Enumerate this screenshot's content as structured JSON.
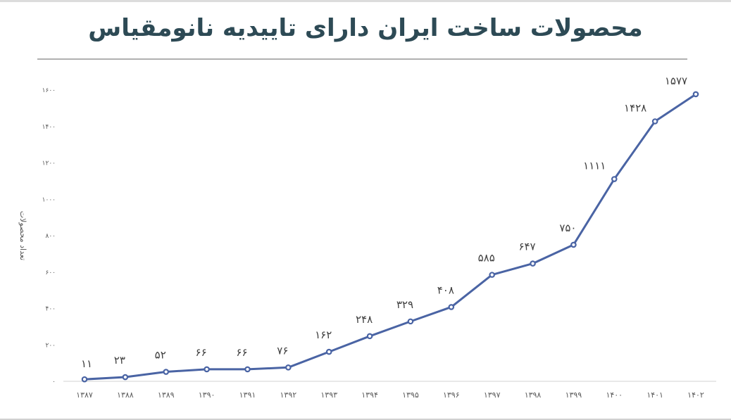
{
  "chart_data": {
    "type": "line",
    "title": "محصولات ساخت ایران دارای تاییدیه نانومقیاس",
    "xlabel": "",
    "ylabel": "تعداد محصولات",
    "categories": [
      "۱۳۸۷",
      "۱۳۸۸",
      "۱۳۸۹",
      "۱۳۹۰",
      "۱۳۹۱",
      "۱۳۹۲",
      "۱۳۹۳",
      "۱۳۹۴",
      "۱۳۹۵",
      "۱۳۹۶",
      "۱۳۹۷",
      "۱۳۹۸",
      "۱۳۹۹",
      "۱۴۰۰",
      "۱۴۰۱",
      "۱۴۰۲"
    ],
    "x": [
      1387,
      1388,
      1389,
      1390,
      1391,
      1392,
      1393,
      1394,
      1395,
      1396,
      1397,
      1398,
      1399,
      1400,
      1401,
      1402
    ],
    "series": [
      {
        "name": "تعداد محصولات",
        "values": [
          11,
          23,
          52,
          66,
          66,
          76,
          162,
          248,
          329,
          408,
          585,
          647,
          750,
          1111,
          1428,
          1577
        ],
        "data_labels": [
          "۱۱",
          "۲۳",
          "۵۲",
          "۶۶",
          "۶۶",
          "۷۶",
          "۱۶۲",
          "۲۴۸",
          "۳۲۹",
          "۴۰۸",
          "۵۸۵",
          "۶۴۷",
          "۷۵۰",
          "۱۱۱۱",
          "۱۴۲۸",
          "۱۵۷۷"
        ],
        "color": "#4a64a4"
      }
    ],
    "ylim": [
      0,
      1600
    ],
    "yticks": [
      0,
      200,
      400,
      600,
      800,
      1000,
      1200,
      1400,
      1600
    ],
    "ytick_labels": [
      "۰",
      "۲۰۰",
      "۴۰۰",
      "۶۰۰",
      "۸۰۰",
      "۱۰۰۰",
      "۱۲۰۰",
      "۱۴۰۰",
      "۱۶۰۰"
    ],
    "grid": false,
    "legend": "none",
    "markers": "circle"
  },
  "colors": {
    "title": "#2d4a55",
    "line": "#4a64a4",
    "axis": "#d9d9d9",
    "tick_text": "#595959",
    "data_label": "#404040"
  }
}
